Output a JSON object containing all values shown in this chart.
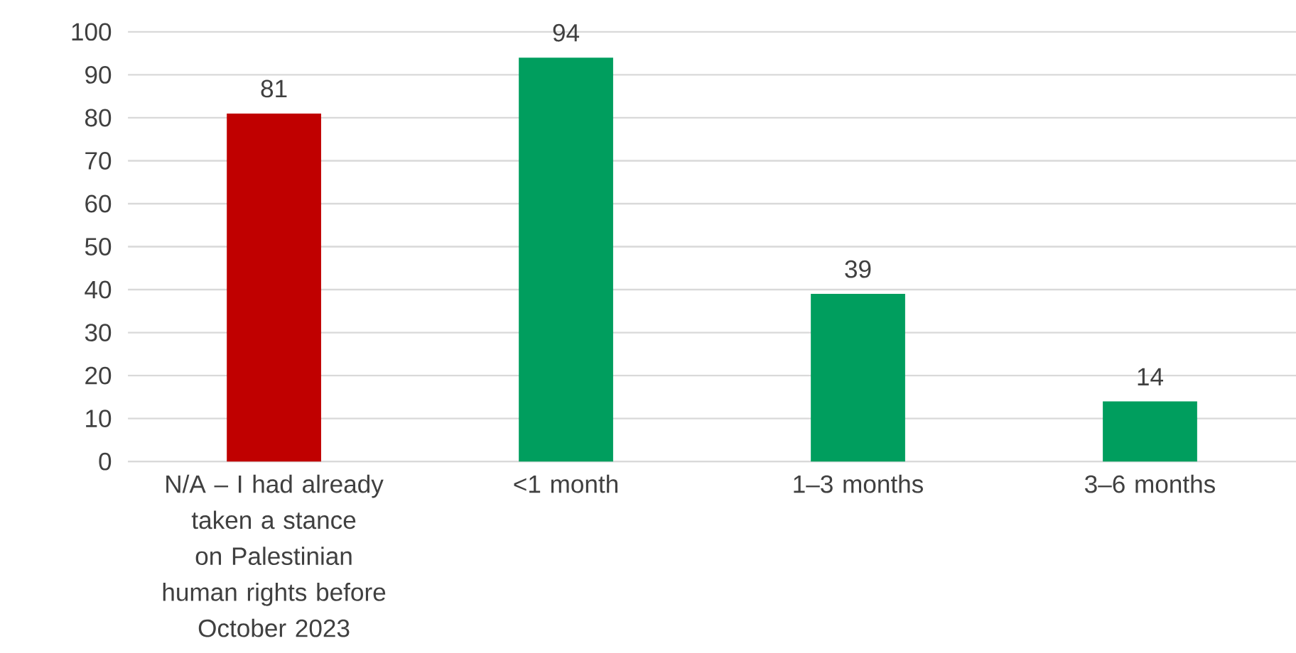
{
  "chart_data": {
    "type": "bar",
    "categories": [
      "N/A – I had already taken a stance on Palestinian human rights before October 2023",
      "<1 month",
      "1–3 months",
      "3–6 months"
    ],
    "values": [
      81,
      94,
      39,
      14
    ],
    "colors": [
      "#c00000",
      "#009e5e",
      "#009e5e",
      "#009e5e"
    ],
    "ylim": [
      0,
      100
    ],
    "yticks": [
      0,
      10,
      20,
      30,
      40,
      50,
      60,
      70,
      80,
      90,
      100
    ],
    "grid": "y",
    "data_labels": true
  }
}
